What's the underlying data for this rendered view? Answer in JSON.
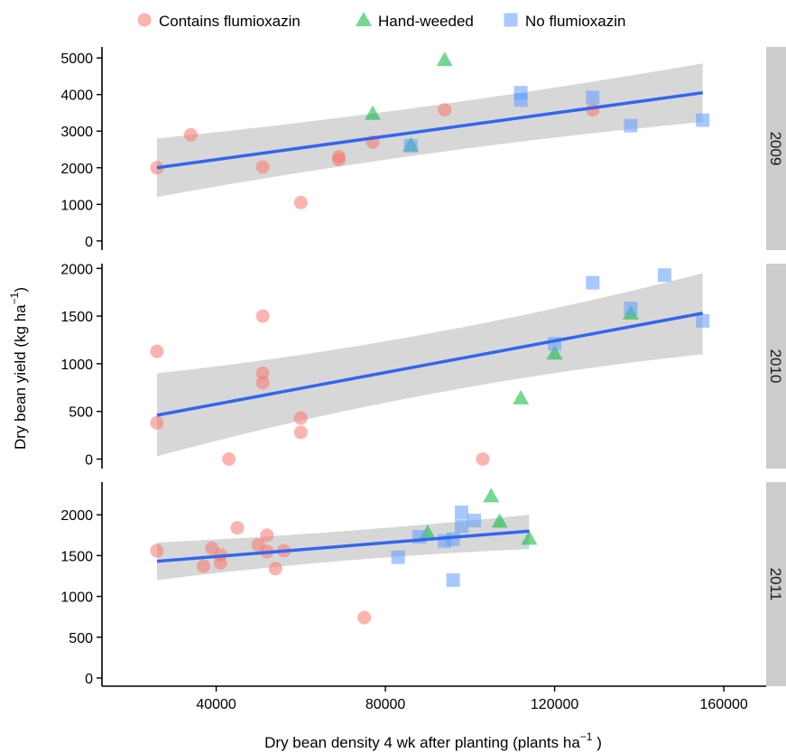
{
  "chart_data": {
    "type": "scatter",
    "xlabel": "Dry bean density 4 wk after planting (plants  ha",
    "xlabel_sup": "−1",
    "xlabel_end": " )",
    "ylabel": "Dry bean yield (kg  ha",
    "ylabel_sup": "−1",
    "ylabel_end": ")",
    "xlim": [
      13000,
      170000
    ],
    "x_ticks": [
      40000,
      80000,
      120000,
      160000
    ],
    "grid": false,
    "legend_position": "top",
    "legend": [
      {
        "name": "Contains flumioxazin",
        "shape": "circle",
        "color": "#F8766D"
      },
      {
        "name": "Hand-weeded",
        "shape": "triangle",
        "color": "#00BA38"
      },
      {
        "name": "No flumioxazin",
        "shape": "square",
        "color": "#619CFF"
      }
    ],
    "fit_color": "#3366EE",
    "band_color": "#bdbdbd",
    "panels": [
      {
        "strip": "2009",
        "ylim": [
          -250,
          5300
        ],
        "y_ticks": [
          0,
          1000,
          2000,
          3000,
          4000,
          5000
        ],
        "fit": {
          "x0": 26000,
          "y0": 2000,
          "x1": 155000,
          "y1": 4050
        },
        "band": [
          [
            26000,
            1200,
            2800
          ],
          [
            90000,
            2700,
            3400
          ],
          [
            155000,
            3250,
            4850
          ]
        ],
        "points": [
          {
            "g": 0,
            "x": 26000,
            "y": 2000
          },
          {
            "g": 0,
            "x": 34000,
            "y": 2900
          },
          {
            "g": 0,
            "x": 51000,
            "y": 2020
          },
          {
            "g": 0,
            "x": 60000,
            "y": 1050
          },
          {
            "g": 0,
            "x": 69000,
            "y": 2300
          },
          {
            "g": 0,
            "x": 69000,
            "y": 2220
          },
          {
            "g": 0,
            "x": 77000,
            "y": 2700
          },
          {
            "g": 0,
            "x": 94000,
            "y": 3580
          },
          {
            "g": 0,
            "x": 129000,
            "y": 3580
          },
          {
            "g": 1,
            "x": 77000,
            "y": 3480
          },
          {
            "g": 1,
            "x": 86000,
            "y": 2620
          },
          {
            "g": 1,
            "x": 94000,
            "y": 4950
          },
          {
            "g": 2,
            "x": 86000,
            "y": 2600
          },
          {
            "g": 2,
            "x": 112000,
            "y": 4050
          },
          {
            "g": 2,
            "x": 112000,
            "y": 3850
          },
          {
            "g": 2,
            "x": 129000,
            "y": 3920
          },
          {
            "g": 2,
            "x": 138000,
            "y": 3150
          },
          {
            "g": 2,
            "x": 155000,
            "y": 3300
          }
        ]
      },
      {
        "strip": "2010",
        "ylim": [
          -100,
          2050
        ],
        "y_ticks": [
          0,
          500,
          1000,
          1500,
          2000
        ],
        "fit": {
          "x0": 26000,
          "y0": 460,
          "x1": 155000,
          "y1": 1530
        },
        "band": [
          [
            26000,
            30,
            900
          ],
          [
            90000,
            850,
            1150
          ],
          [
            155000,
            1100,
            1950
          ]
        ],
        "points": [
          {
            "g": 0,
            "x": 26000,
            "y": 1130
          },
          {
            "g": 0,
            "x": 26000,
            "y": 380
          },
          {
            "g": 0,
            "x": 43000,
            "y": 0
          },
          {
            "g": 0,
            "x": 51000,
            "y": 1500
          },
          {
            "g": 0,
            "x": 51000,
            "y": 900
          },
          {
            "g": 0,
            "x": 51000,
            "y": 800
          },
          {
            "g": 0,
            "x": 60000,
            "y": 430
          },
          {
            "g": 0,
            "x": 60000,
            "y": 280
          },
          {
            "g": 0,
            "x": 103000,
            "y": 0
          },
          {
            "g": 1,
            "x": 112000,
            "y": 640
          },
          {
            "g": 1,
            "x": 120000,
            "y": 1110
          },
          {
            "g": 1,
            "x": 138000,
            "y": 1530
          },
          {
            "g": 2,
            "x": 120000,
            "y": 1210
          },
          {
            "g": 2,
            "x": 129000,
            "y": 1850
          },
          {
            "g": 2,
            "x": 138000,
            "y": 1580
          },
          {
            "g": 2,
            "x": 146000,
            "y": 1930
          },
          {
            "g": 2,
            "x": 155000,
            "y": 1450
          }
        ]
      },
      {
        "strip": "2011",
        "ylim": [
          -100,
          2400
        ],
        "y_ticks": [
          0,
          500,
          1000,
          1500,
          2000
        ],
        "fit": {
          "x0": 26000,
          "y0": 1430,
          "x1": 114000,
          "y1": 1800
        },
        "band": [
          [
            26000,
            1200,
            1660
          ],
          [
            70000,
            1550,
            1700
          ],
          [
            114000,
            1580,
            2000
          ]
        ],
        "points": [
          {
            "g": 0,
            "x": 26000,
            "y": 1560
          },
          {
            "g": 0,
            "x": 37000,
            "y": 1370
          },
          {
            "g": 0,
            "x": 39000,
            "y": 1590
          },
          {
            "g": 0,
            "x": 41000,
            "y": 1510
          },
          {
            "g": 0,
            "x": 41000,
            "y": 1410
          },
          {
            "g": 0,
            "x": 45000,
            "y": 1840
          },
          {
            "g": 0,
            "x": 50000,
            "y": 1630
          },
          {
            "g": 0,
            "x": 52000,
            "y": 1750
          },
          {
            "g": 0,
            "x": 52000,
            "y": 1550
          },
          {
            "g": 0,
            "x": 54000,
            "y": 1340
          },
          {
            "g": 0,
            "x": 56000,
            "y": 1560
          },
          {
            "g": 0,
            "x": 75000,
            "y": 740
          },
          {
            "g": 1,
            "x": 90000,
            "y": 1780
          },
          {
            "g": 1,
            "x": 105000,
            "y": 2230
          },
          {
            "g": 1,
            "x": 107000,
            "y": 1920
          },
          {
            "g": 1,
            "x": 114000,
            "y": 1710
          },
          {
            "g": 2,
            "x": 83000,
            "y": 1480
          },
          {
            "g": 2,
            "x": 88000,
            "y": 1730
          },
          {
            "g": 2,
            "x": 94000,
            "y": 1680
          },
          {
            "g": 2,
            "x": 96000,
            "y": 1700
          },
          {
            "g": 2,
            "x": 96000,
            "y": 1200
          },
          {
            "g": 2,
            "x": 98000,
            "y": 2030
          },
          {
            "g": 2,
            "x": 98000,
            "y": 1860
          },
          {
            "g": 2,
            "x": 101000,
            "y": 1930
          }
        ]
      }
    ]
  }
}
